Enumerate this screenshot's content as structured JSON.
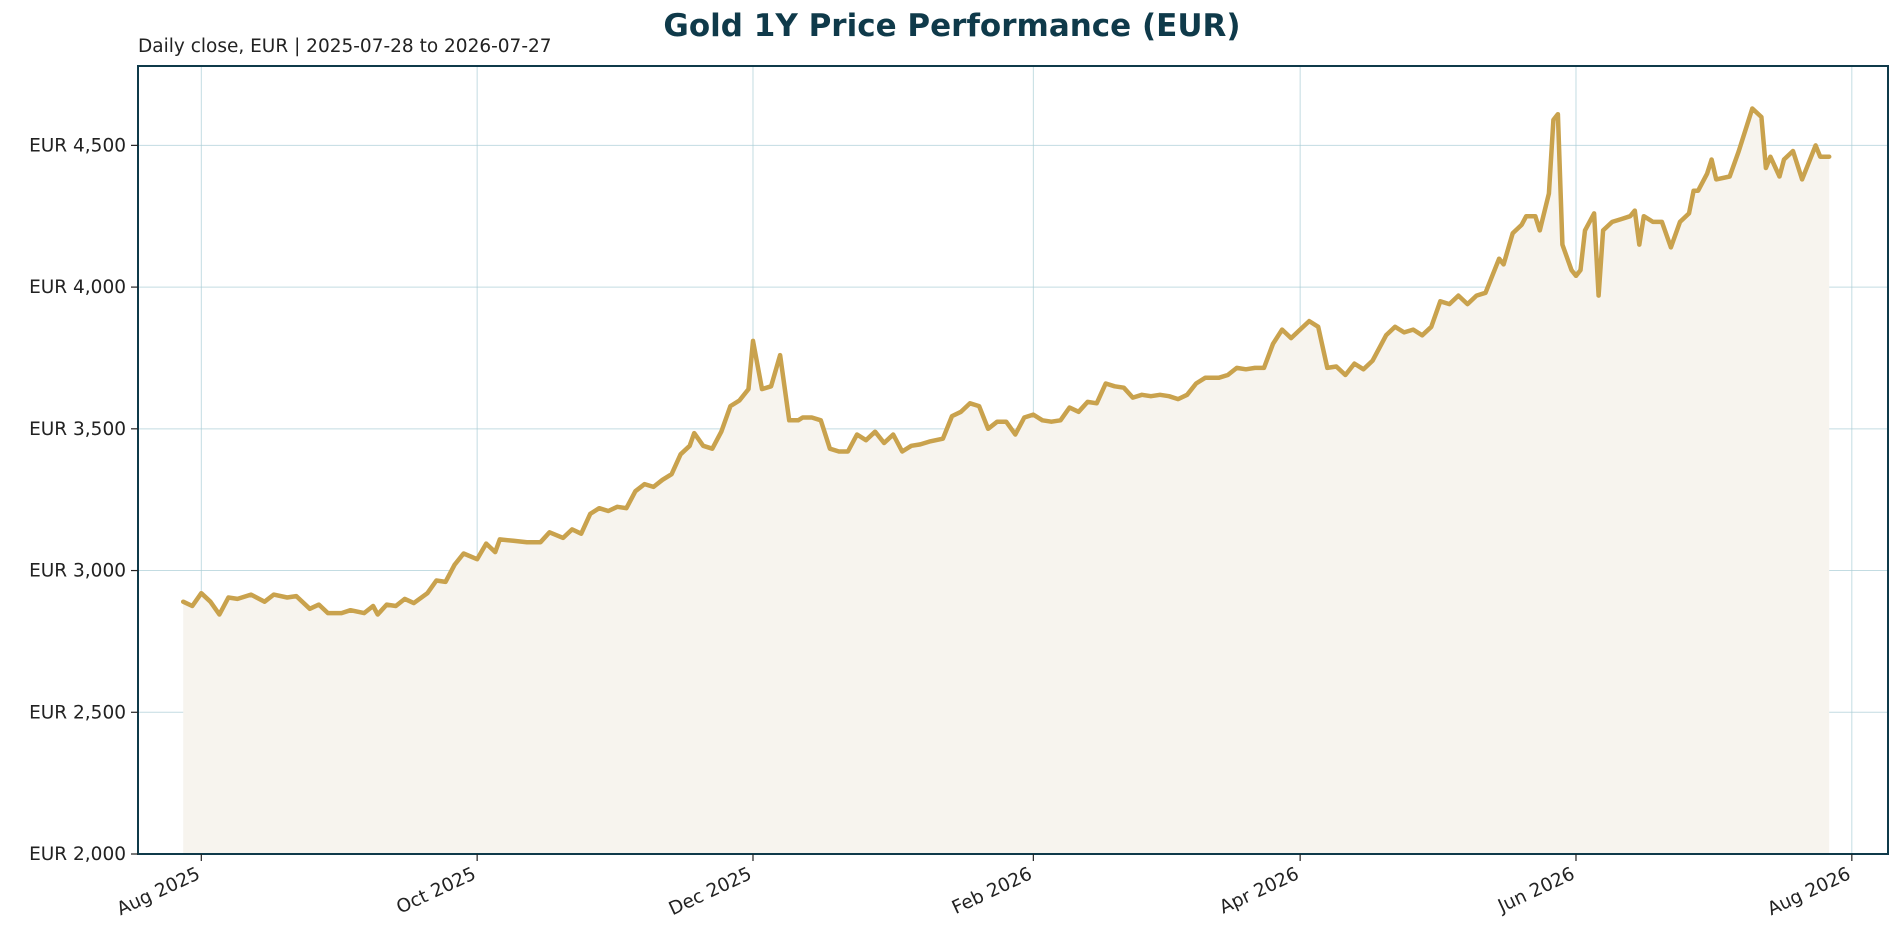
{
  "chart_data": {
    "type": "area",
    "title": "Gold 1Y Price Performance (EUR)",
    "subtitle": "Daily close, EUR | 2025-07-28 to 2026-07-27",
    "xlabel": "",
    "ylabel": "",
    "ylim": [
      2000,
      4780
    ],
    "xlim": [
      "2025-07-18",
      "2026-08-09"
    ],
    "y_ticks": [
      2000,
      2500,
      3000,
      3500,
      4000,
      4500
    ],
    "y_tick_labels": [
      "EUR 2,000",
      "EUR 2,500",
      "EUR 3,000",
      "EUR 3,500",
      "EUR 4,000",
      "EUR 4,500"
    ],
    "x_ticks": [
      "2025-08-01",
      "2025-10-01",
      "2025-12-01",
      "2026-02-01",
      "2026-04-01",
      "2026-06-01",
      "2026-08-01"
    ],
    "x_tick_labels": [
      "Aug 2025",
      "Oct 2025",
      "Dec 2025",
      "Feb 2026",
      "Apr 2026",
      "Jun 2026",
      "Aug 2026"
    ],
    "grid": true,
    "line_color": "#c9a24d",
    "fill_color": "#f7f4ee",
    "grid_color": "#a9cdd6",
    "frame_color": "#0f3a4a",
    "title_color": "#0f3a4a",
    "series": [
      {
        "points": [
          [
            "2025-07-28",
            2890
          ],
          [
            "2025-07-30",
            2875
          ],
          [
            "2025-08-01",
            2920
          ],
          [
            "2025-08-03",
            2890
          ],
          [
            "2025-08-05",
            2845
          ],
          [
            "2025-08-07",
            2905
          ],
          [
            "2025-08-09",
            2900
          ],
          [
            "2025-08-12",
            2915
          ],
          [
            "2025-08-15",
            2890
          ],
          [
            "2025-08-17",
            2915
          ],
          [
            "2025-08-20",
            2905
          ],
          [
            "2025-08-22",
            2910
          ],
          [
            "2025-08-25",
            2865
          ],
          [
            "2025-08-27",
            2880
          ],
          [
            "2025-08-29",
            2850
          ],
          [
            "2025-09-01",
            2850
          ],
          [
            "2025-09-03",
            2860
          ],
          [
            "2025-09-06",
            2850
          ],
          [
            "2025-09-08",
            2875
          ],
          [
            "2025-09-09",
            2845
          ],
          [
            "2025-09-11",
            2880
          ],
          [
            "2025-09-13",
            2875
          ],
          [
            "2025-09-15",
            2900
          ],
          [
            "2025-09-17",
            2885
          ],
          [
            "2025-09-20",
            2920
          ],
          [
            "2025-09-22",
            2965
          ],
          [
            "2025-09-24",
            2960
          ],
          [
            "2025-09-26",
            3020
          ],
          [
            "2025-09-28",
            3060
          ],
          [
            "2025-10-01",
            3040
          ],
          [
            "2025-10-03",
            3095
          ],
          [
            "2025-10-05",
            3065
          ],
          [
            "2025-10-06",
            3110
          ],
          [
            "2025-10-09",
            3105
          ],
          [
            "2025-10-12",
            3100
          ],
          [
            "2025-10-15",
            3100
          ],
          [
            "2025-10-17",
            3135
          ],
          [
            "2025-10-20",
            3115
          ],
          [
            "2025-10-22",
            3145
          ],
          [
            "2025-10-24",
            3130
          ],
          [
            "2025-10-26",
            3200
          ],
          [
            "2025-10-28",
            3220
          ],
          [
            "2025-10-30",
            3210
          ],
          [
            "2025-11-01",
            3225
          ],
          [
            "2025-11-03",
            3220
          ],
          [
            "2025-11-05",
            3280
          ],
          [
            "2025-11-07",
            3305
          ],
          [
            "2025-11-09",
            3295
          ],
          [
            "2025-11-11",
            3320
          ],
          [
            "2025-11-13",
            3340
          ],
          [
            "2025-11-15",
            3410
          ],
          [
            "2025-11-17",
            3440
          ],
          [
            "2025-11-18",
            3485
          ],
          [
            "2025-11-20",
            3440
          ],
          [
            "2025-11-22",
            3430
          ],
          [
            "2025-11-24",
            3490
          ],
          [
            "2025-11-26",
            3580
          ],
          [
            "2025-11-28",
            3600
          ],
          [
            "2025-11-30",
            3640
          ],
          [
            "2025-12-01",
            3810
          ],
          [
            "2025-12-03",
            3640
          ],
          [
            "2025-12-05",
            3650
          ],
          [
            "2025-12-07",
            3760
          ],
          [
            "2025-12-09",
            3530
          ],
          [
            "2025-12-11",
            3530
          ],
          [
            "2025-12-12",
            3540
          ],
          [
            "2025-12-14",
            3540
          ],
          [
            "2025-12-16",
            3530
          ],
          [
            "2025-12-18",
            3430
          ],
          [
            "2025-12-20",
            3420
          ],
          [
            "2025-12-22",
            3420
          ],
          [
            "2025-12-24",
            3480
          ],
          [
            "2025-12-26",
            3460
          ],
          [
            "2025-12-28",
            3490
          ],
          [
            "2025-12-30",
            3450
          ],
          [
            "2026-01-01",
            3480
          ],
          [
            "2026-01-03",
            3420
          ],
          [
            "2026-01-05",
            3440
          ],
          [
            "2026-01-07",
            3445
          ],
          [
            "2026-01-09",
            3455
          ],
          [
            "2026-01-12",
            3465
          ],
          [
            "2026-01-14",
            3545
          ],
          [
            "2026-01-16",
            3560
          ],
          [
            "2026-01-18",
            3590
          ],
          [
            "2026-01-20",
            3580
          ],
          [
            "2026-01-22",
            3500
          ],
          [
            "2026-01-24",
            3525
          ],
          [
            "2026-01-26",
            3525
          ],
          [
            "2026-01-28",
            3480
          ],
          [
            "2026-01-30",
            3540
          ],
          [
            "2026-02-01",
            3550
          ],
          [
            "2026-02-03",
            3530
          ],
          [
            "2026-02-05",
            3525
          ],
          [
            "2026-02-07",
            3530
          ],
          [
            "2026-02-09",
            3575
          ],
          [
            "2026-02-11",
            3560
          ],
          [
            "2026-02-13",
            3595
          ],
          [
            "2026-02-15",
            3590
          ],
          [
            "2026-02-17",
            3660
          ],
          [
            "2026-02-19",
            3650
          ],
          [
            "2026-02-21",
            3645
          ],
          [
            "2026-02-23",
            3610
          ],
          [
            "2026-02-25",
            3620
          ],
          [
            "2026-02-27",
            3615
          ],
          [
            "2026-03-01",
            3620
          ],
          [
            "2026-03-03",
            3615
          ],
          [
            "2026-03-05",
            3605
          ],
          [
            "2026-03-07",
            3620
          ],
          [
            "2026-03-09",
            3660
          ],
          [
            "2026-03-11",
            3680
          ],
          [
            "2026-03-14",
            3680
          ],
          [
            "2026-03-16",
            3690
          ],
          [
            "2026-03-18",
            3715
          ],
          [
            "2026-03-20",
            3710
          ],
          [
            "2026-03-22",
            3715
          ],
          [
            "2026-03-24",
            3715
          ],
          [
            "2026-03-26",
            3800
          ],
          [
            "2026-03-28",
            3850
          ],
          [
            "2026-03-30",
            3820
          ],
          [
            "2026-04-01",
            3850
          ],
          [
            "2026-04-03",
            3880
          ],
          [
            "2026-04-05",
            3860
          ],
          [
            "2026-04-07",
            3715
          ],
          [
            "2026-04-09",
            3720
          ],
          [
            "2026-04-11",
            3690
          ],
          [
            "2026-04-13",
            3730
          ],
          [
            "2026-04-15",
            3710
          ],
          [
            "2026-04-17",
            3740
          ],
          [
            "2026-04-20",
            3830
          ],
          [
            "2026-04-22",
            3860
          ],
          [
            "2026-04-24",
            3840
          ],
          [
            "2026-04-26",
            3850
          ],
          [
            "2026-04-28",
            3830
          ],
          [
            "2026-04-30",
            3860
          ],
          [
            "2026-05-02",
            3950
          ],
          [
            "2026-05-04",
            3940
          ],
          [
            "2026-05-06",
            3970
          ],
          [
            "2026-05-08",
            3940
          ],
          [
            "2026-05-10",
            3970
          ],
          [
            "2026-05-12",
            3980
          ],
          [
            "2026-05-15",
            4100
          ],
          [
            "2026-05-16",
            4080
          ],
          [
            "2026-05-18",
            4190
          ],
          [
            "2026-05-20",
            4220
          ],
          [
            "2026-05-21",
            4250
          ],
          [
            "2026-05-23",
            4250
          ],
          [
            "2026-05-24",
            4200
          ],
          [
            "2026-05-26",
            4330
          ],
          [
            "2026-05-27",
            4590
          ],
          [
            "2026-05-28",
            4610
          ],
          [
            "2026-05-29",
            4150
          ],
          [
            "2026-05-31",
            4060
          ],
          [
            "2026-06-01",
            4040
          ],
          [
            "2026-06-02",
            4060
          ],
          [
            "2026-06-03",
            4200
          ],
          [
            "2026-06-05",
            4260
          ],
          [
            "2026-06-06",
            3970
          ],
          [
            "2026-06-07",
            4200
          ],
          [
            "2026-06-09",
            4230
          ],
          [
            "2026-06-11",
            4240
          ],
          [
            "2026-06-13",
            4250
          ],
          [
            "2026-06-14",
            4270
          ],
          [
            "2026-06-15",
            4150
          ],
          [
            "2026-06-16",
            4250
          ],
          [
            "2026-06-18",
            4230
          ],
          [
            "2026-06-20",
            4230
          ],
          [
            "2026-06-22",
            4140
          ],
          [
            "2026-06-24",
            4230
          ],
          [
            "2026-06-26",
            4260
          ],
          [
            "2026-06-27",
            4340
          ],
          [
            "2026-06-28",
            4340
          ],
          [
            "2026-06-30",
            4400
          ],
          [
            "2026-07-01",
            4450
          ],
          [
            "2026-07-02",
            4380
          ],
          [
            "2026-07-05",
            4390
          ],
          [
            "2026-07-07",
            4480
          ],
          [
            "2026-07-09",
            4580
          ],
          [
            "2026-07-10",
            4630
          ],
          [
            "2026-07-12",
            4600
          ],
          [
            "2026-07-13",
            4420
          ],
          [
            "2026-07-14",
            4460
          ],
          [
            "2026-07-16",
            4390
          ],
          [
            "2026-07-17",
            4450
          ],
          [
            "2026-07-19",
            4480
          ],
          [
            "2026-07-21",
            4380
          ],
          [
            "2026-07-24",
            4500
          ],
          [
            "2026-07-25",
            4460
          ],
          [
            "2026-07-27",
            4460
          ]
        ]
      }
    ]
  }
}
